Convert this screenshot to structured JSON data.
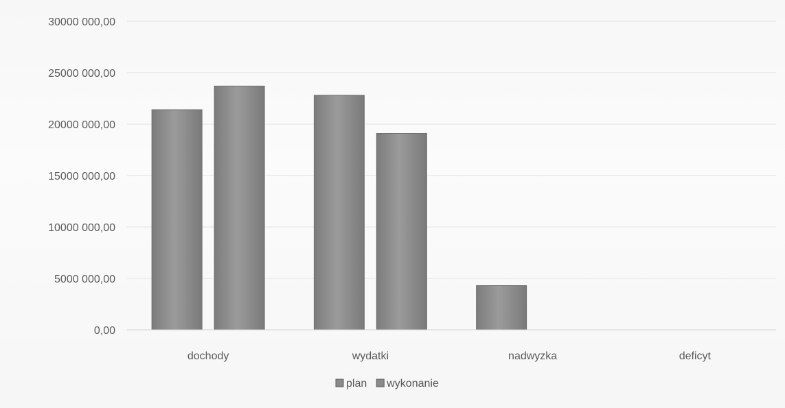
{
  "chart_data": {
    "type": "bar",
    "title": "",
    "xlabel": "",
    "ylabel": "",
    "categories": [
      "dochody",
      "wydatki",
      "nadwyzka",
      "deficyt"
    ],
    "series": [
      {
        "name": "plan",
        "values": [
          21400000,
          22800000,
          4300000,
          0
        ],
        "color": "#8a8a8a"
      },
      {
        "name": "wykonanie",
        "values": [
          23700000,
          19100000,
          0,
          0
        ],
        "color": "#8a8a8a"
      }
    ],
    "y_ticks": [
      0,
      5000000,
      10000000,
      15000000,
      20000000,
      25000000,
      30000000
    ],
    "y_tick_labels": [
      "0,00",
      "5000 000,00",
      "10000 000,00",
      "15000 000,00",
      "20000 000,00",
      "25000 000,00",
      "30000 000,00"
    ],
    "ylim": [
      0,
      30000000
    ],
    "grid": true,
    "legend_position": "bottom"
  }
}
